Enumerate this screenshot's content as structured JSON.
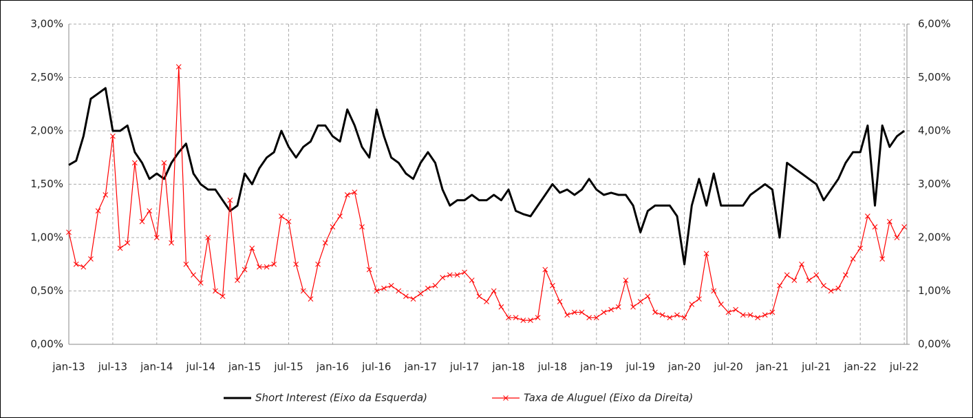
{
  "chart_data": {
    "type": "line",
    "x": [
      "jan-13",
      "fev-13",
      "mar-13",
      "abr-13",
      "mai-13",
      "jun-13",
      "jul-13",
      "ago-13",
      "set-13",
      "out-13",
      "nov-13",
      "dez-13",
      "jan-14",
      "fev-14",
      "mar-14",
      "abr-14",
      "mai-14",
      "jun-14",
      "jul-14",
      "ago-14",
      "set-14",
      "out-14",
      "nov-14",
      "dez-14",
      "jan-15",
      "fev-15",
      "mar-15",
      "abr-15",
      "mai-15",
      "jun-15",
      "jul-15",
      "ago-15",
      "set-15",
      "out-15",
      "nov-15",
      "dez-15",
      "jan-16",
      "fev-16",
      "mar-16",
      "abr-16",
      "mai-16",
      "jun-16",
      "jul-16",
      "ago-16",
      "set-16",
      "out-16",
      "nov-16",
      "dez-16",
      "jan-17",
      "fev-17",
      "mar-17",
      "abr-17",
      "mai-17",
      "jun-17",
      "jul-17",
      "ago-17",
      "set-17",
      "out-17",
      "nov-17",
      "dez-17",
      "jan-18",
      "fev-18",
      "mar-18",
      "abr-18",
      "mai-18",
      "jun-18",
      "jul-18",
      "ago-18",
      "set-18",
      "out-18",
      "nov-18",
      "dez-18",
      "jan-19",
      "fev-19",
      "mar-19",
      "abr-19",
      "mai-19",
      "jun-19",
      "jul-19",
      "ago-19",
      "set-19",
      "out-19",
      "nov-19",
      "dez-19",
      "jan-20",
      "fev-20",
      "mar-20",
      "abr-20",
      "mai-20",
      "jun-20",
      "jul-20",
      "ago-20",
      "set-20",
      "out-20",
      "nov-20",
      "dez-20",
      "jan-21",
      "fev-21",
      "mar-21",
      "abr-21",
      "mai-21",
      "jun-21",
      "jul-21",
      "ago-21",
      "set-21",
      "out-21",
      "nov-21",
      "dez-21",
      "jan-22",
      "fev-22",
      "mar-22",
      "abr-22",
      "mai-22",
      "jun-22",
      "jul-22"
    ],
    "xticks": [
      "jan-13",
      "jul-13",
      "jan-14",
      "jul-14",
      "jan-15",
      "jul-15",
      "jan-16",
      "jul-16",
      "jan-17",
      "jul-17",
      "jan-18",
      "jul-18",
      "jan-19",
      "jul-19",
      "jan-20",
      "jul-20",
      "jan-21",
      "jul-21",
      "jan-22",
      "jul-22"
    ],
    "ylim": [
      0,
      3
    ],
    "yticks": [
      {
        "value": 0,
        "label": "0,00%"
      },
      {
        "value": 0.5,
        "label": "0,50%"
      },
      {
        "value": 1,
        "label": "1,00%"
      },
      {
        "value": 1.5,
        "label": "1,50%"
      },
      {
        "value": 2,
        "label": "2,00%"
      },
      {
        "value": 2.5,
        "label": "2,50%"
      },
      {
        "value": 3,
        "label": "3,00%"
      }
    ],
    "y2lim": [
      0,
      6
    ],
    "y2ticks": [
      {
        "value": 0,
        "label": "0,00%"
      },
      {
        "value": 1,
        "label": "1,00%"
      },
      {
        "value": 2,
        "label": "2,00%"
      },
      {
        "value": 3,
        "label": "3,00%"
      },
      {
        "value": 4,
        "label": "4,00%"
      },
      {
        "value": 5,
        "label": "5,00%"
      },
      {
        "value": 6,
        "label": "6,00%"
      }
    ],
    "grid": true,
    "series": [
      {
        "name": "Short Interest (Eixo da Esquerda)",
        "color": "#000000",
        "axis": "y",
        "values": [
          1.68,
          1.72,
          1.95,
          2.3,
          2.35,
          2.4,
          2.0,
          2.0,
          2.05,
          1.8,
          1.7,
          1.55,
          1.6,
          1.55,
          1.7,
          1.8,
          1.88,
          1.6,
          1.5,
          1.45,
          1.45,
          1.35,
          1.25,
          1.3,
          1.6,
          1.5,
          1.65,
          1.75,
          1.8,
          2.0,
          1.85,
          1.75,
          1.85,
          1.9,
          2.05,
          2.05,
          1.95,
          1.9,
          2.2,
          2.05,
          1.85,
          1.75,
          2.2,
          1.95,
          1.75,
          1.7,
          1.6,
          1.55,
          1.7,
          1.8,
          1.7,
          1.45,
          1.3,
          1.35,
          1.35,
          1.4,
          1.35,
          1.35,
          1.4,
          1.35,
          1.45,
          1.25,
          1.22,
          1.2,
          1.3,
          1.4,
          1.5,
          1.42,
          1.45,
          1.4,
          1.45,
          1.55,
          1.45,
          1.4,
          1.42,
          1.4,
          1.4,
          1.3,
          1.05,
          1.25,
          1.3,
          1.3,
          1.3,
          1.2,
          0.75,
          1.3,
          1.55,
          1.3,
          1.6,
          1.3,
          1.3,
          1.3,
          1.3,
          1.4,
          1.45,
          1.5,
          1.45,
          1.0,
          1.7,
          1.65,
          1.6,
          1.55,
          1.5,
          1.35,
          1.45,
          1.55,
          1.7,
          1.8,
          1.8,
          2.05,
          1.3,
          2.05,
          1.85,
          1.95,
          2.0
        ]
      },
      {
        "name": "Taxa de Aluguel (Eixo da Direita)",
        "color": "#ff0000",
        "axis": "y2",
        "values": [
          2.1,
          1.5,
          1.45,
          1.6,
          2.5,
          2.8,
          3.9,
          1.8,
          1.9,
          3.4,
          2.3,
          2.5,
          2.0,
          3.4,
          1.9,
          5.2,
          1.5,
          1.3,
          1.15,
          2.0,
          1.0,
          0.9,
          2.7,
          1.2,
          1.4,
          1.8,
          1.45,
          1.45,
          1.5,
          2.4,
          2.3,
          1.5,
          1.0,
          0.85,
          1.5,
          1.9,
          2.2,
          2.4,
          2.8,
          2.85,
          2.2,
          1.4,
          1.0,
          1.05,
          1.1,
          1.0,
          0.9,
          0.85,
          0.95,
          1.05,
          1.1,
          1.25,
          1.3,
          1.3,
          1.35,
          1.2,
          0.9,
          0.8,
          1.0,
          0.7,
          0.5,
          0.5,
          0.45,
          0.45,
          0.5,
          1.4,
          1.1,
          0.8,
          0.55,
          0.6,
          0.6,
          0.5,
          0.5,
          0.6,
          0.65,
          0.7,
          1.2,
          0.7,
          0.8,
          0.9,
          0.6,
          0.55,
          0.5,
          0.55,
          0.5,
          0.75,
          0.85,
          1.7,
          1.0,
          0.75,
          0.6,
          0.65,
          0.55,
          0.55,
          0.5,
          0.55,
          0.6,
          1.1,
          1.3,
          1.2,
          1.5,
          1.2,
          1.3,
          1.1,
          1.0,
          1.05,
          1.3,
          1.6,
          1.8,
          2.4,
          2.2,
          1.6,
          2.3,
          2.0,
          2.2
        ]
      }
    ]
  }
}
